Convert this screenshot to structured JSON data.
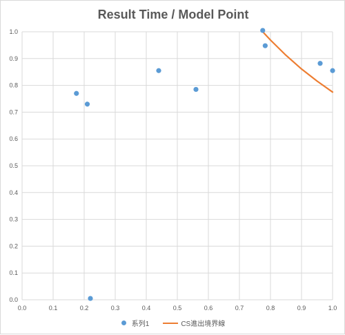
{
  "chart_data": {
    "type": "scatter",
    "title": "Result Time / Model Point",
    "xlim": [
      0,
      1
    ],
    "ylim": [
      0,
      1
    ],
    "x_ticks": [
      "0.0",
      "0.1",
      "0.2",
      "0.3",
      "0.4",
      "0.5",
      "0.6",
      "0.7",
      "0.8",
      "0.9",
      "1.0"
    ],
    "y_ticks": [
      "0.0",
      "0.1",
      "0.2",
      "0.3",
      "0.4",
      "0.5",
      "0.6",
      "0.7",
      "0.8",
      "0.9",
      "1.0"
    ],
    "grid": true,
    "legend_position": "bottom",
    "series": [
      {
        "name": "系列1",
        "kind": "scatter",
        "color": "#5b9bd5",
        "points": [
          {
            "x": 0.175,
            "y": 0.77
          },
          {
            "x": 0.21,
            "y": 0.73
          },
          {
            "x": 0.22,
            "y": 0.005
          },
          {
            "x": 0.44,
            "y": 0.855
          },
          {
            "x": 0.56,
            "y": 0.785
          },
          {
            "x": 0.775,
            "y": 1.005
          },
          {
            "x": 0.783,
            "y": 0.948
          },
          {
            "x": 0.96,
            "y": 0.882
          },
          {
            "x": 1.0,
            "y": 0.855
          }
        ]
      },
      {
        "name": "CS進出境界線",
        "kind": "line",
        "color": "#ed7d31",
        "points": [
          {
            "x": 0.775,
            "y": 1.0
          },
          {
            "x": 0.8,
            "y": 0.969
          },
          {
            "x": 0.85,
            "y": 0.912
          },
          {
            "x": 0.9,
            "y": 0.861
          },
          {
            "x": 0.95,
            "y": 0.816
          },
          {
            "x": 1.0,
            "y": 0.775
          }
        ]
      }
    ]
  }
}
